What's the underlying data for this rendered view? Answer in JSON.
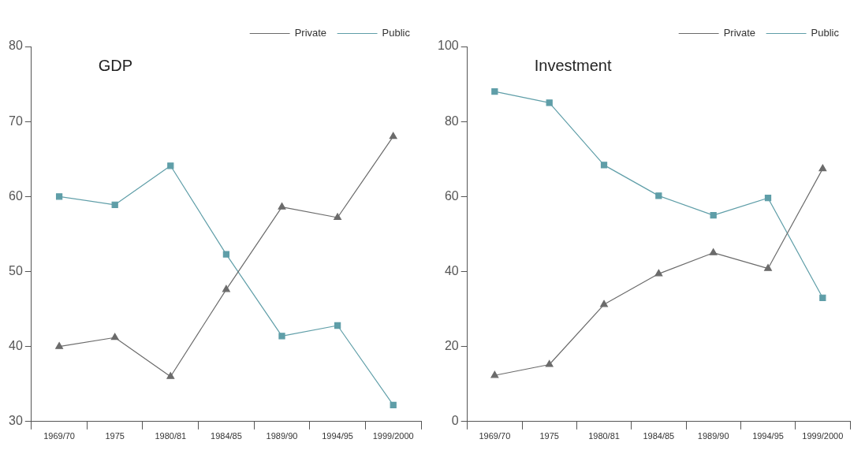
{
  "chart_data": [
    {
      "type": "line",
      "title": "GDP",
      "categories": [
        "1969/70",
        "1975",
        "1980/81",
        "1984/85",
        "1989/90",
        "1994/95",
        "1999/2000"
      ],
      "series": [
        {
          "name": "Private",
          "color": "#6b6b6b",
          "marker": "triangle",
          "values": [
            40,
            41.2,
            36,
            47.6,
            58.6,
            57.2,
            68
          ]
        },
        {
          "name": "Public",
          "color": "#5f9ea8",
          "marker": "square",
          "values": [
            60,
            58.9,
            64.1,
            52.3,
            41.4,
            42.8,
            32.2
          ]
        }
      ],
      "ylim": [
        30,
        80
      ],
      "yticks": [
        30,
        40,
        50,
        60,
        70,
        80
      ],
      "grid": false,
      "legend": "top right"
    },
    {
      "type": "line",
      "title": "Investment",
      "categories": [
        "1969/70",
        "1975",
        "1980/81",
        "1984/85",
        "1989/90",
        "1994/95",
        "1999/2000"
      ],
      "series": [
        {
          "name": "Private",
          "color": "#6b6b6b",
          "marker": "triangle",
          "values": [
            12.3,
            15.2,
            31.2,
            39.4,
            45,
            40.8,
            67.4
          ]
        },
        {
          "name": "Public",
          "color": "#5f9ea8",
          "marker": "square",
          "values": [
            88,
            85,
            68.4,
            60.2,
            55,
            59.6,
            33
          ]
        }
      ],
      "ylim": [
        0,
        100
      ],
      "yticks": [
        0,
        20,
        40,
        60,
        80,
        100
      ],
      "grid": false,
      "legend": "top right"
    }
  ]
}
